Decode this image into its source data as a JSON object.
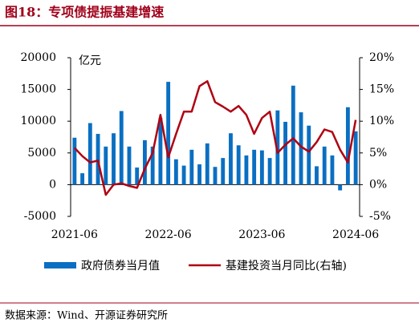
{
  "header": {
    "title": "图18：专项债提振基建增速"
  },
  "chart_data": {
    "type": "bar_line",
    "unit_label": "亿元",
    "categories": [
      "2021-06",
      null,
      null,
      null,
      null,
      null,
      null,
      null,
      null,
      null,
      null,
      null,
      "2022-06",
      null,
      null,
      null,
      null,
      null,
      null,
      null,
      null,
      null,
      null,
      null,
      "2023-06",
      null,
      null,
      null,
      null,
      null,
      null,
      null,
      null,
      null,
      null,
      null,
      "2024-06"
    ],
    "series": [
      {
        "name": "政府债券当月值",
        "type": "bar",
        "color": "#0a6fc2",
        "values": [
          7400,
          1800,
          9700,
          8000,
          6000,
          8100,
          11600,
          6000,
          2700,
          7000,
          6000,
          10500,
          16200,
          4000,
          3000,
          5500,
          3200,
          6500,
          2800,
          4200,
          8100,
          6200,
          4600,
          5500,
          5400,
          4200,
          11700,
          9900,
          15600,
          11400,
          9300,
          2900,
          6000,
          4600,
          -900,
          12200,
          8400
        ]
      },
      {
        "name": "基建投资当月同比(右轴)",
        "type": "line",
        "axis": "y2",
        "color": "#b00012",
        "values": [
          5.8,
          4.5,
          3.5,
          3.8,
          -1.6,
          0.0,
          0.2,
          -0.2,
          -0.5,
          2.5,
          5.0,
          11.0,
          4.3,
          8.0,
          11.5,
          11.5,
          15.5,
          16.3,
          13.0,
          12.3,
          11.5,
          12.4,
          11.0,
          8.0,
          10.5,
          11.5,
          5.0,
          6.3,
          7.3,
          6.0,
          5.2,
          6.7,
          8.7,
          8.3,
          5.5,
          3.5,
          10.2
        ]
      }
    ],
    "ylim": [
      -5000,
      20000
    ],
    "yticks": [
      -5000,
      0,
      5000,
      10000,
      15000,
      20000
    ],
    "y2lim": [
      -5,
      20
    ],
    "y2ticks": [
      {
        "value": -5,
        "label": "-5%"
      },
      {
        "value": 0,
        "label": "0%"
      },
      {
        "value": 5,
        "label": "5%"
      },
      {
        "value": 10,
        "label": "10%"
      },
      {
        "value": 15,
        "label": "15%"
      },
      {
        "value": 20,
        "label": "20%"
      }
    ]
  },
  "footer": {
    "source": "数据来源：Wind、开源证券研究所"
  }
}
